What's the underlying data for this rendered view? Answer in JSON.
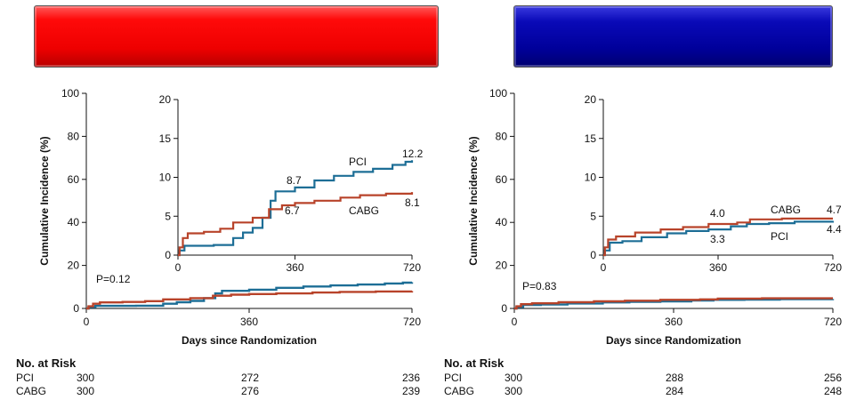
{
  "colors": {
    "pci": "#1d6e96",
    "cabg": "#b8432a",
    "axis": "#111111",
    "left_banner": "#ee0000",
    "right_banner": "#00009a"
  },
  "chart_data": [
    {
      "type": "line",
      "ylabel": "Cumulative Incidence (%)",
      "xlabel": "Days since Randomization",
      "xlim": [
        0,
        720
      ],
      "ylim": [
        0,
        100
      ],
      "xticks": [
        0,
        360,
        720
      ],
      "yticks": [
        0,
        20,
        40,
        60,
        80,
        100
      ],
      "p_value": "P=0.12",
      "series": [
        {
          "name": "PCI",
          "points": [
            [
              0,
              0
            ],
            [
              5,
              0.6
            ],
            [
              20,
              1.2
            ],
            [
              110,
              1.3
            ],
            [
              170,
              2.2
            ],
            [
              200,
              2.9
            ],
            [
              230,
              3.5
            ],
            [
              260,
              4.8
            ],
            [
              285,
              7.0
            ],
            [
              300,
              8.2
            ],
            [
              360,
              8.7
            ],
            [
              420,
              9.6
            ],
            [
              480,
              10.2
            ],
            [
              540,
              10.7
            ],
            [
              600,
              11.1
            ],
            [
              660,
              11.6
            ],
            [
              700,
              12.0
            ],
            [
              720,
              12.2
            ]
          ]
        },
        {
          "name": "CABG",
          "points": [
            [
              0,
              0
            ],
            [
              5,
              1.0
            ],
            [
              15,
              2.2
            ],
            [
              30,
              2.8
            ],
            [
              80,
              3.0
            ],
            [
              130,
              3.4
            ],
            [
              170,
              4.2
            ],
            [
              230,
              4.8
            ],
            [
              280,
              5.9
            ],
            [
              320,
              6.4
            ],
            [
              360,
              6.7
            ],
            [
              420,
              7.0
            ],
            [
              500,
              7.4
            ],
            [
              560,
              7.7
            ],
            [
              640,
              7.9
            ],
            [
              720,
              8.1
            ]
          ]
        }
      ],
      "inset": {
        "xlim": [
          0,
          720
        ],
        "ylim": [
          0,
          20
        ],
        "xticks": [
          0,
          360,
          720
        ],
        "yticks": [
          0,
          5,
          10,
          15,
          20
        ],
        "line_labels": {
          "pci": "PCI",
          "cabg": "CABG"
        },
        "annotations": {
          "pci_360": "8.7",
          "cabg_360": "6.7",
          "pci_720": "12.2",
          "cabg_720": "8.1"
        }
      },
      "risk_table": {
        "title": "No. at Risk",
        "rows": [
          {
            "label": "PCI",
            "values": [
              "300",
              "272",
              "236"
            ]
          },
          {
            "label": "CABG",
            "values": [
              "300",
              "276",
              "239"
            ]
          }
        ]
      }
    },
    {
      "type": "line",
      "ylabel": "Cumulative Incidence (%)",
      "xlabel": "Days since Randomization",
      "xlim": [
        0,
        720
      ],
      "ylim": [
        0,
        100
      ],
      "xticks": [
        0,
        360,
        720
      ],
      "yticks": [
        0,
        20,
        40,
        60,
        80,
        100
      ],
      "p_value": "P=0.83",
      "series": [
        {
          "name": "PCI",
          "points": [
            [
              0,
              0
            ],
            [
              5,
              0.6
            ],
            [
              20,
              1.6
            ],
            [
              60,
              1.8
            ],
            [
              120,
              2.3
            ],
            [
              200,
              2.8
            ],
            [
              260,
              3.1
            ],
            [
              330,
              3.3
            ],
            [
              400,
              3.7
            ],
            [
              450,
              4.0
            ],
            [
              520,
              4.1
            ],
            [
              600,
              4.3
            ],
            [
              720,
              4.4
            ]
          ]
        },
        {
          "name": "CABG",
          "points": [
            [
              0,
              0
            ],
            [
              5,
              1.0
            ],
            [
              15,
              2.0
            ],
            [
              40,
              2.4
            ],
            [
              100,
              2.9
            ],
            [
              180,
              3.3
            ],
            [
              250,
              3.6
            ],
            [
              330,
              4.0
            ],
            [
              420,
              4.2
            ],
            [
              460,
              4.6
            ],
            [
              560,
              4.7
            ],
            [
              720,
              4.7
            ]
          ]
        }
      ],
      "inset": {
        "xlim": [
          0,
          720
        ],
        "ylim": [
          0,
          20
        ],
        "xticks": [
          0,
          360,
          720
        ],
        "yticks": [
          0,
          5,
          10,
          15,
          20
        ],
        "line_labels": {
          "pci": "PCI",
          "cabg": "CABG"
        },
        "annotations": {
          "cabg_360": "4.0",
          "pci_360": "3.3",
          "cabg_720": "4.7",
          "pci_720": "4.4"
        }
      },
      "risk_table": {
        "title": "No. at Risk",
        "rows": [
          {
            "label": "PCI",
            "values": [
              "300",
              "288",
              "256"
            ]
          },
          {
            "label": "CABG",
            "values": [
              "300",
              "284",
              "248"
            ]
          }
        ]
      }
    }
  ]
}
